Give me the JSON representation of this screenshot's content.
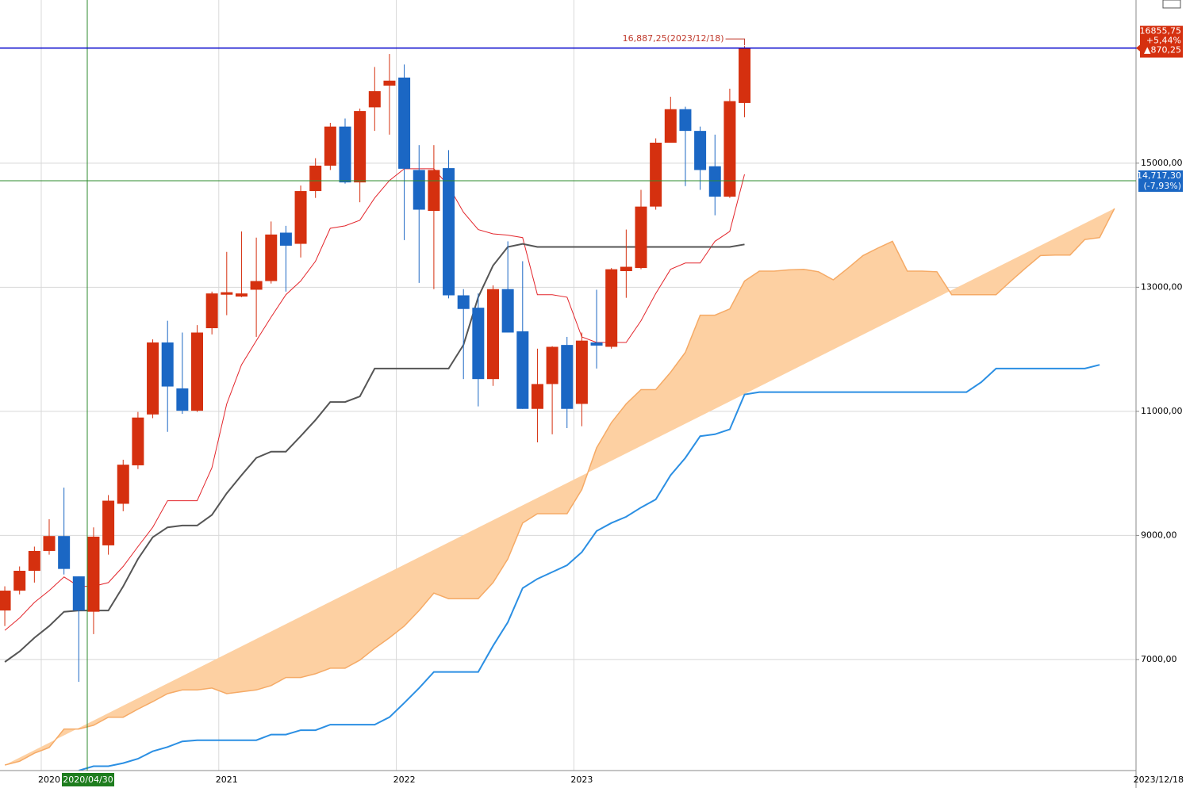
{
  "chart_data": {
    "type": "candlestick",
    "categories": [
      null,
      null,
      null,
      "2020",
      null,
      null,
      null,
      null,
      null,
      null,
      null,
      null,
      null,
      null,
      null,
      "2021",
      null,
      null,
      null,
      null,
      null,
      null,
      null,
      null,
      null,
      null,
      null,
      "2022",
      null,
      null,
      null,
      null,
      null,
      null,
      null,
      null,
      null,
      null,
      null,
      "2023",
      null,
      null,
      null,
      null,
      null,
      null,
      null,
      null,
      null,
      null,
      null,
      null,
      null,
      null,
      null,
      null,
      null,
      null,
      null,
      null,
      null,
      null,
      null,
      null,
      null,
      null,
      null,
      null,
      null,
      null,
      null,
      null,
      null,
      null,
      null,
      null
    ],
    "ylim": [
      5210,
      17630
    ],
    "yticks": [
      {
        "value": 7000,
        "label": "7000,00"
      },
      {
        "value": 9000,
        "label": "9000,00"
      },
      {
        "value": 11000,
        "label": "11000,00"
      },
      {
        "value": 13000,
        "label": "13000,00"
      },
      {
        "value": 15000,
        "label": "15000,00"
      }
    ],
    "grid": true,
    "up_color": "#d5300f",
    "down_color": "#1b67c4",
    "open": [
      7790,
      8110,
      8430,
      8750,
      8990,
      8340,
      7770,
      8840,
      9510,
      10130,
      10950,
      12110,
      11370,
      11010,
      12340,
      12880,
      12850,
      12960,
      13100,
      13880,
      13700,
      14550,
      14960,
      15590,
      14690,
      15900,
      16250,
      16380,
      14890,
      14230,
      14920,
      12870,
      12670,
      11520,
      12970,
      12290,
      11040,
      11440,
      12070,
      11120,
      12110,
      12040,
      13260,
      13310,
      14300,
      15330,
      15870,
      15520,
      14950,
      14460,
      15970,
      null,
      null,
      null,
      null,
      null,
      null,
      null,
      null,
      null,
      null,
      null,
      null,
      null,
      null,
      null,
      null,
      null,
      null,
      null,
      null,
      null,
      null,
      null,
      null,
      null
    ],
    "high": [
      8180,
      8500,
      8820,
      9260,
      9770,
      8340,
      9130,
      9650,
      10220,
      10990,
      12160,
      12460,
      12270,
      12390,
      12930,
      13570,
      13900,
      13800,
      14060,
      13990,
      14640,
      15080,
      15650,
      15720,
      15880,
      16550,
      16760,
      16590,
      15290,
      15290,
      15210,
      12970,
      12900,
      13030,
      13740,
      13420,
      12010,
      12050,
      12200,
      12270,
      12960,
      13310,
      13930,
      14570,
      15400,
      16070,
      15910,
      15590,
      15460,
      16200,
      16887.25,
      null,
      null,
      null,
      null,
      null,
      null,
      null,
      null,
      null,
      null,
      null,
      null,
      null,
      null,
      null,
      null,
      null,
      null,
      null,
      null,
      null,
      null,
      null,
      null,
      null
    ],
    "low": [
      7540,
      8050,
      8240,
      8690,
      8370,
      6640,
      7410,
      8690,
      9390,
      10070,
      10890,
      10670,
      10960,
      10990,
      12240,
      12550,
      12840,
      12200,
      13060,
      12930,
      13480,
      14440,
      14890,
      14670,
      14370,
      15520,
      15460,
      13760,
      13070,
      12970,
      12820,
      11520,
      11080,
      11410,
      12270,
      11040,
      10500,
      10630,
      10730,
      10760,
      11690,
      12010,
      12830,
      13290,
      14250,
      15330,
      14630,
      14570,
      14160,
      14440,
      15740,
      null,
      null,
      null,
      null,
      null,
      null,
      null,
      null,
      null,
      null,
      null,
      null,
      null,
      null,
      null,
      null,
      null,
      null,
      null,
      null,
      null,
      null,
      null,
      null,
      null
    ],
    "close": [
      8110,
      8430,
      8750,
      8990,
      8460,
      7790,
      8980,
      9560,
      10140,
      10900,
      12110,
      11400,
      11010,
      12270,
      12900,
      12920,
      12900,
      13100,
      13850,
      13670,
      14550,
      14960,
      15590,
      14690,
      15840,
      16160,
      16330,
      14910,
      14250,
      14890,
      12870,
      12650,
      11520,
      12970,
      12270,
      11040,
      11440,
      12040,
      11040,
      12140,
      12060,
      13290,
      13330,
      14300,
      15330,
      15870,
      15520,
      14890,
      14460,
      16000,
      16855.75,
      null,
      null,
      null,
      null,
      null,
      null,
      null,
      null,
      null,
      null,
      null,
      null,
      null,
      null,
      null,
      null,
      null,
      null,
      null,
      null,
      null,
      null,
      null,
      null,
      null
    ],
    "lines": [
      {
        "color": "#e3262c",
        "values": [
          7470,
          7670,
          7920,
          8110,
          8330,
          8180,
          8180,
          8240,
          8500,
          8820,
          9130,
          9560,
          9560,
          9560,
          10090,
          11120,
          11750,
          12140,
          12520,
          12880,
          13100,
          13420,
          13950,
          13990,
          14080,
          14440,
          14720,
          14910,
          14910,
          14910,
          14630,
          14210,
          13930,
          13860,
          13840,
          13800,
          12880,
          12880,
          12840,
          12200,
          12110,
          12110,
          12110,
          12460,
          12900,
          13290,
          13390,
          13390,
          13740,
          13900,
          14820,
          null,
          null,
          null,
          null,
          null,
          null,
          null,
          null,
          null,
          null,
          null,
          null,
          null,
          null,
          null,
          null,
          null,
          null,
          null,
          null,
          null,
          null,
          null,
          null,
          null
        ]
      },
      {
        "color": "#555555",
        "values": [
          6960,
          7130,
          7350,
          7540,
          7770,
          7790,
          7790,
          7790,
          8180,
          8620,
          8970,
          9130,
          9160,
          9160,
          9330,
          9680,
          9970,
          10250,
          10350,
          10350,
          10600,
          10860,
          11150,
          11150,
          11240,
          11690,
          11690,
          11690,
          11690,
          11690,
          11690,
          12070,
          12840,
          13350,
          13650,
          13700,
          13650,
          13650,
          13650,
          13650,
          13650,
          13650,
          13650,
          13650,
          13650,
          13650,
          13650,
          13650,
          13650,
          13650,
          13690,
          null,
          null,
          null,
          null,
          null,
          null,
          null,
          null,
          null,
          null,
          null,
          null,
          null,
          null,
          null,
          null,
          null,
          null,
          null,
          null,
          null,
          null,
          null,
          null,
          null
        ]
      }
    ],
    "cloud": {
      "color": "#fdd0a2",
      "span_a": {
        "color": "#f5aa66",
        "values": [
          5300,
          5360,
          5490,
          5580,
          5880,
          5880,
          5940,
          6070,
          6070,
          6200,
          6320,
          6450,
          6510,
          6510,
          6540,
          6450,
          6480,
          6510,
          6580,
          6710,
          6710,
          6770,
          6860,
          6860,
          6990,
          7180,
          7350,
          7540,
          7790,
          8070,
          7980,
          7980,
          7980,
          8240,
          8620,
          9200,
          9350,
          9350,
          9350,
          9740,
          10410,
          10820,
          11120,
          11350,
          11350,
          11630,
          11950,
          12550,
          12550,
          12650,
          13100,
          13260,
          13260,
          13280,
          13290,
          13250,
          13120,
          13310,
          13510,
          13630,
          13740,
          13260,
          13260,
          13250,
          12880,
          12880,
          12880,
          12880,
          13100,
          13310,
          13510,
          13520,
          13520,
          13770,
          13800,
          14270
        ]
      },
      "span_b": {
        "color": "#2b8fe3",
        "values": [
          null,
          null,
          null,
          null,
          null,
          5210,
          5280,
          5280,
          5330,
          5400,
          5520,
          5590,
          5680,
          5700,
          5700,
          5700,
          5700,
          5700,
          5790,
          5790,
          5860,
          5860,
          5950,
          5950,
          5950,
          5950,
          6070,
          6300,
          6540,
          6800,
          6800,
          6800,
          6800,
          7220,
          7600,
          8150,
          8300,
          8410,
          8520,
          8730,
          9070,
          9200,
          9300,
          9450,
          9580,
          9970,
          10250,
          10600,
          10630,
          10710,
          11270,
          11310,
          11310,
          11310,
          11310,
          11310,
          11310,
          11310,
          11310,
          11310,
          11310,
          11310,
          11310,
          11310,
          11310,
          11310,
          11470,
          11690,
          11690,
          11690,
          11690,
          11690,
          11690,
          11690,
          11750
        ]
      }
    },
    "price_line": {
      "color": "#0000cc",
      "labels": [
        "16855,75",
        "+5,44%",
        "▲870,25"
      ]
    },
    "high_annotation": "16,887,25(2023/12/18)",
    "crosshair": {
      "color": "#2e8b2e",
      "date": "2020/04/30",
      "value": 14717.3,
      "value_label": "14,717,30",
      "change_label": "(-7,93%)"
    },
    "last_date": "2023/12/18"
  }
}
